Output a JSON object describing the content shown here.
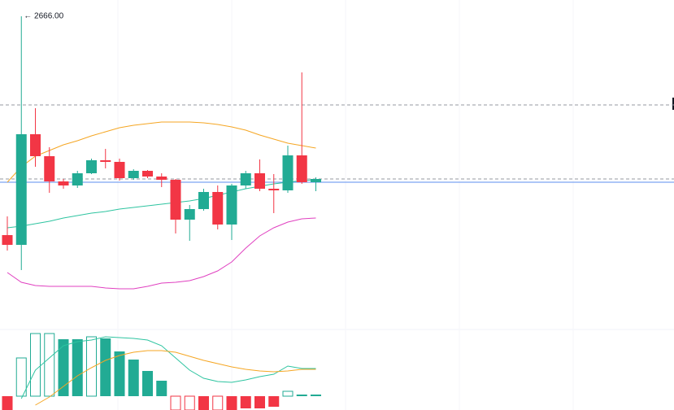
{
  "chart_data": [
    {
      "type": "candlestick",
      "ylim": [
        2647,
        2667
      ],
      "open": [
        2652.55,
        2651.95,
        2658.75,
        2657.4,
        2655.85,
        2655.6,
        2656.35,
        2657.15,
        2657.05,
        2656.05,
        2656.5,
        2656.15,
        2655.95,
        2653.5,
        2654.15,
        2655.2,
        2653.2,
        2655.6,
        2656.35,
        2655.4,
        2655.3,
        2657.45,
        2655.8
      ],
      "high": [
        2653.7,
        2666.0,
        2660.35,
        2657.95,
        2656.0,
        2656.5,
        2657.25,
        2657.85,
        2657.25,
        2656.6,
        2656.55,
        2656.35,
        2656.0,
        2654.4,
        2655.4,
        2655.6,
        2655.7,
        2656.5,
        2657.2,
        2656.3,
        2658.05,
        2662.55,
        2656.1
      ],
      "low": [
        2651.6,
        2650.4,
        2656.75,
        2655.15,
        2655.4,
        2655.45,
        2656.3,
        2656.65,
        2655.9,
        2655.95,
        2656.05,
        2655.5,
        2652.65,
        2652.2,
        2654.05,
        2652.9,
        2652.25,
        2655.4,
        2655.25,
        2653.9,
        2655.15,
        2655.7,
        2655.25
      ],
      "close": [
        2651.95,
        2658.75,
        2657.4,
        2655.85,
        2655.6,
        2656.35,
        2657.15,
        2657.05,
        2656.05,
        2656.5,
        2656.15,
        2655.95,
        2653.5,
        2654.15,
        2655.2,
        2653.2,
        2655.6,
        2656.35,
        2655.4,
        2655.3,
        2657.45,
        2655.8,
        2656.0
      ],
      "up_color": "#22ab94",
      "down_color": "#f23645",
      "high_label": "← 2666.00",
      "series": [
        {
          "color": "#f5a623",
          "values": [
            2655.8,
            2656.75,
            2657.4,
            2657.75,
            2658.1,
            2658.35,
            2658.65,
            2658.9,
            2659.15,
            2659.3,
            2659.4,
            2659.5,
            2659.5,
            2659.5,
            2659.45,
            2659.35,
            2659.2,
            2659.0,
            2658.7,
            2658.45,
            2658.2,
            2658.05,
            2657.9
          ]
        },
        {
          "color": "#2ec4a0",
          "values": [
            2653.0,
            2653.1,
            2653.25,
            2653.4,
            2653.6,
            2653.75,
            2653.9,
            2654.0,
            2654.15,
            2654.25,
            2654.35,
            2654.45,
            2654.55,
            2654.65,
            2654.8,
            2655.0,
            2655.2,
            2655.4,
            2655.55,
            2655.7,
            2655.8,
            2655.9,
            2655.95
          ]
        },
        {
          "color": "#e040c0",
          "values": [
            2650.25,
            2649.65,
            2649.45,
            2649.4,
            2649.4,
            2649.4,
            2649.4,
            2649.3,
            2649.25,
            2649.25,
            2649.4,
            2649.6,
            2649.65,
            2649.75,
            2650.0,
            2650.35,
            2650.9,
            2651.75,
            2652.5,
            2653.0,
            2653.35,
            2653.55,
            2653.6
          ]
        }
      ],
      "price_lines": [
        {
          "value": 2660.55,
          "color": "#9598a1",
          "style": "dashed"
        },
        {
          "value": 2656.0,
          "color": "#9598a1",
          "style": "dashed"
        },
        {
          "value": 2655.8,
          "color": "#5b8def",
          "style": "solid"
        }
      ]
    },
    {
      "type": "macd",
      "ylim": [
        -1.8,
        8.2
      ],
      "histogram": [
        -1.7,
        4.7,
        7.7,
        7.7,
        7.0,
        7.0,
        7.3,
        7.1,
        5.5,
        4.5,
        3.1,
        1.9,
        -1.7,
        -1.7,
        -1.7,
        -1.7,
        -1.7,
        -1.5,
        -1.5,
        -1.3,
        0.6,
        0.2,
        0.2
      ],
      "hollow": [
        false,
        true,
        true,
        true,
        false,
        false,
        true,
        false,
        false,
        false,
        false,
        false,
        true,
        true,
        false,
        true,
        false,
        false,
        false,
        false,
        true,
        false,
        false
      ],
      "up_color": "#22ab94",
      "down_color": "#f23645",
      "series": [
        {
          "color": "#2ec4a0",
          "values": [
            null,
            -0.3,
            3.2,
            4.7,
            6.2,
            6.7,
            6.9,
            7.3,
            7.2,
            7.1,
            6.9,
            6.2,
            4.7,
            3.2,
            2.2,
            1.8,
            1.7,
            2.0,
            2.4,
            2.7,
            3.7,
            3.4,
            3.4
          ]
        },
        {
          "color": "#f5a623",
          "values": [
            null,
            null,
            -1.1,
            -0.1,
            1.2,
            2.5,
            3.5,
            4.4,
            5.0,
            5.4,
            5.6,
            5.6,
            5.4,
            4.9,
            4.4,
            4.0,
            3.6,
            3.3,
            3.1,
            3.0,
            3.1,
            3.3,
            3.3
          ]
        }
      ]
    }
  ]
}
